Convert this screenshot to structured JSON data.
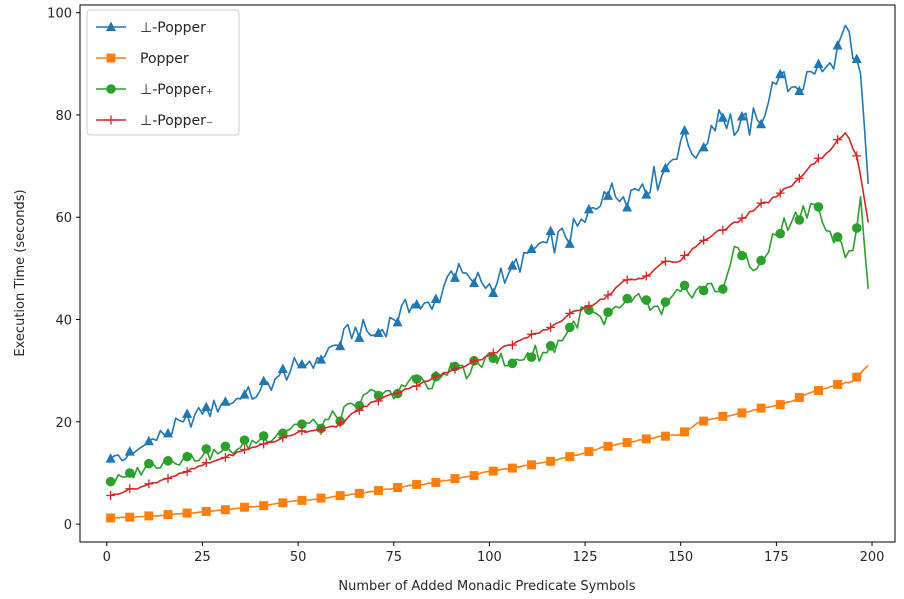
{
  "chart_data": {
    "type": "line",
    "xlabel": "Number of Added Monadic Predicate Symbols",
    "ylabel": "Execution Time (seconds)",
    "xlim": [
      -7,
      206
    ],
    "ylim": [
      -3.5,
      101.5
    ],
    "xticks": [
      0,
      25,
      50,
      75,
      100,
      125,
      150,
      175,
      200
    ],
    "yticks": [
      0,
      20,
      40,
      60,
      80,
      100
    ],
    "grid": false,
    "legend_position": "top-left",
    "series": [
      {
        "name": "⊥-Popper",
        "color": "#1f77b4",
        "marker": "triangle",
        "marker_every": 5,
        "anchors": [
          [
            1,
            12.8
          ],
          [
            3,
            13.5
          ],
          [
            5,
            12.8
          ],
          [
            10,
            15.5
          ],
          [
            15,
            17.5
          ],
          [
            20,
            20
          ],
          [
            25,
            21.5
          ],
          [
            30,
            23.5
          ],
          [
            35,
            24.5
          ],
          [
            40,
            26
          ],
          [
            45,
            29
          ],
          [
            50,
            31
          ],
          [
            55,
            32.5
          ],
          [
            60,
            35
          ],
          [
            65,
            38.5
          ],
          [
            70,
            37
          ],
          [
            75,
            40
          ],
          [
            80,
            43
          ],
          [
            85,
            42
          ],
          [
            90,
            49.5
          ],
          [
            95,
            48
          ],
          [
            100,
            47
          ],
          [
            105,
            49
          ],
          [
            110,
            53
          ],
          [
            115,
            55
          ],
          [
            120,
            56
          ],
          [
            125,
            59
          ],
          [
            130,
            65
          ],
          [
            135,
            64
          ],
          [
            140,
            66.5
          ],
          [
            145,
            68
          ],
          [
            150,
            75
          ],
          [
            155,
            73
          ],
          [
            160,
            81
          ],
          [
            165,
            77
          ],
          [
            170,
            79
          ],
          [
            175,
            86
          ],
          [
            180,
            85.5
          ],
          [
            185,
            88
          ],
          [
            190,
            89
          ],
          [
            193,
            97.5
          ],
          [
            195,
            91
          ],
          [
            197,
            88
          ],
          [
            199,
            66.5
          ]
        ]
      },
      {
        "name": "Popper",
        "color": "#ff7f0e",
        "marker": "square",
        "marker_every": 5,
        "anchors": [
          [
            1,
            1.2
          ],
          [
            5,
            1.3
          ],
          [
            10,
            1.5
          ],
          [
            15,
            1.7
          ],
          [
            20,
            2.1
          ],
          [
            25,
            2.4
          ],
          [
            30,
            2.7
          ],
          [
            35,
            3.2
          ],
          [
            40,
            3.5
          ],
          [
            45,
            4.1
          ],
          [
            50,
            4.6
          ],
          [
            55,
            4.9
          ],
          [
            60,
            5.4
          ],
          [
            65,
            5.9
          ],
          [
            70,
            6.4
          ],
          [
            75,
            7.0
          ],
          [
            80,
            7.6
          ],
          [
            85,
            8.0
          ],
          [
            90,
            8.7
          ],
          [
            95,
            9.4
          ],
          [
            100,
            10.3
          ],
          [
            105,
            10.8
          ],
          [
            110,
            11.5
          ],
          [
            115,
            12.2
          ],
          [
            120,
            13.0
          ],
          [
            125,
            13.9
          ],
          [
            130,
            15.2
          ],
          [
            135,
            15.8
          ],
          [
            140,
            16.5
          ],
          [
            145,
            17.2
          ],
          [
            150,
            17.5
          ],
          [
            155,
            20.0
          ],
          [
            160,
            20.8
          ],
          [
            165,
            21.6
          ],
          [
            170,
            22.4
          ],
          [
            175,
            23.2
          ],
          [
            180,
            24.3
          ],
          [
            185,
            26.0
          ],
          [
            190,
            27.0
          ],
          [
            195,
            28.0
          ],
          [
            199,
            31.0
          ]
        ]
      },
      {
        "name": "⊥-Popper₊",
        "color": "#2ca02c",
        "marker": "circle",
        "marker_every": 5,
        "anchors": [
          [
            1,
            8.3
          ],
          [
            5,
            9.2
          ],
          [
            10,
            11
          ],
          [
            15,
            12.3
          ],
          [
            20,
            12.8
          ],
          [
            25,
            13.3
          ],
          [
            30,
            14.2
          ],
          [
            35,
            15
          ],
          [
            40,
            16.5
          ],
          [
            45,
            18
          ],
          [
            50,
            19.5
          ],
          [
            55,
            19.5
          ],
          [
            60,
            21
          ],
          [
            65,
            23
          ],
          [
            70,
            26
          ],
          [
            75,
            24.5
          ],
          [
            80,
            29
          ],
          [
            85,
            26.5
          ],
          [
            90,
            31.5
          ],
          [
            95,
            29.5
          ],
          [
            100,
            33.5
          ],
          [
            105,
            31
          ],
          [
            110,
            33.5
          ],
          [
            115,
            33.5
          ],
          [
            120,
            37
          ],
          [
            125,
            42
          ],
          [
            130,
            39
          ],
          [
            135,
            43
          ],
          [
            140,
            43.5
          ],
          [
            145,
            41
          ],
          [
            150,
            45.5
          ],
          [
            155,
            46.5
          ],
          [
            160,
            45.5
          ],
          [
            165,
            54
          ],
          [
            170,
            50
          ],
          [
            175,
            56.5
          ],
          [
            180,
            61
          ],
          [
            185,
            62.5
          ],
          [
            190,
            55
          ],
          [
            195,
            53.5
          ],
          [
            197,
            64
          ],
          [
            199,
            46
          ]
        ]
      },
      {
        "name": "⊥-Popper₋",
        "color": "#d62728",
        "marker": "plus",
        "marker_every": 5,
        "anchors": [
          [
            1,
            5.6
          ],
          [
            5,
            6.5
          ],
          [
            10,
            7.5
          ],
          [
            15,
            8.8
          ],
          [
            20,
            10
          ],
          [
            25,
            11.5
          ],
          [
            30,
            12.8
          ],
          [
            35,
            14.2
          ],
          [
            40,
            15.5
          ],
          [
            45,
            16.5
          ],
          [
            50,
            18
          ],
          [
            55,
            18.5
          ],
          [
            60,
            19
          ],
          [
            65,
            22
          ],
          [
            70,
            24
          ],
          [
            75,
            25.5
          ],
          [
            80,
            27
          ],
          [
            85,
            28.5
          ],
          [
            90,
            30
          ],
          [
            95,
            31.5
          ],
          [
            100,
            33
          ],
          [
            105,
            35
          ],
          [
            110,
            36.5
          ],
          [
            115,
            38
          ],
          [
            120,
            40.5
          ],
          [
            125,
            42.5
          ],
          [
            130,
            44
          ],
          [
            135,
            47.5
          ],
          [
            140,
            48
          ],
          [
            145,
            51
          ],
          [
            150,
            51.5
          ],
          [
            155,
            55
          ],
          [
            160,
            57.5
          ],
          [
            165,
            59
          ],
          [
            170,
            62
          ],
          [
            175,
            64
          ],
          [
            180,
            67
          ],
          [
            185,
            70.5
          ],
          [
            190,
            74
          ],
          [
            193,
            76.5
          ],
          [
            196,
            72
          ],
          [
            199,
            59
          ]
        ]
      }
    ]
  }
}
